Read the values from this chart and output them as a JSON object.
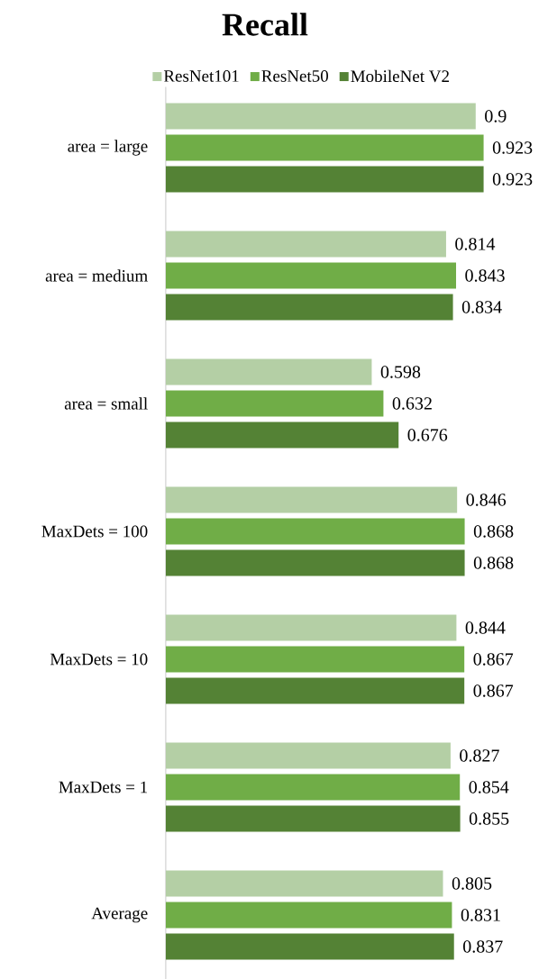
{
  "chart_data": {
    "type": "bar",
    "orientation": "horizontal",
    "title": "Recall",
    "categories": [
      "area = large",
      "area = medium",
      "area = small",
      "MaxDets = 100",
      "MaxDets = 10",
      "MaxDets = 1",
      "Average"
    ],
    "series": [
      {
        "name": "ResNet101",
        "color": "#b4cfa5",
        "values": [
          0.9,
          0.814,
          0.598,
          0.846,
          0.844,
          0.827,
          0.805
        ]
      },
      {
        "name": "ResNet50",
        "color": "#70ad47",
        "values": [
          0.923,
          0.843,
          0.632,
          0.868,
          0.867,
          0.854,
          0.831
        ]
      },
      {
        "name": "MobileNet V2",
        "color": "#548235",
        "values": [
          0.923,
          0.834,
          0.676,
          0.868,
          0.867,
          0.855,
          0.837
        ]
      }
    ],
    "data_labels": true,
    "legend": "top",
    "tick_labels": "y"
  }
}
